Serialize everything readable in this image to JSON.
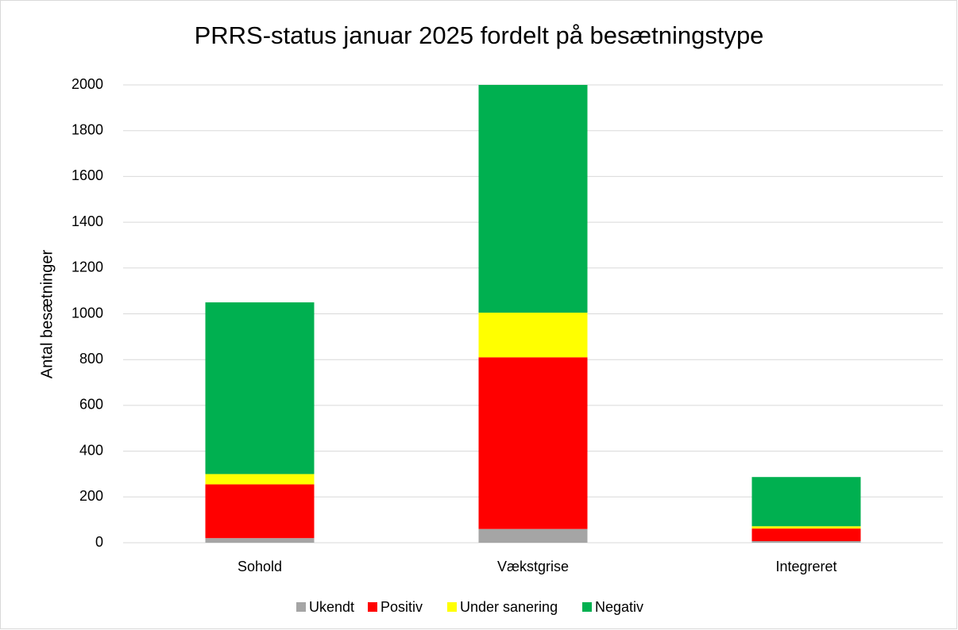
{
  "chart_data": {
    "type": "stacked_bar",
    "title": "PRRS-status januar 2025 fordelt på besætningstype",
    "y_label": "Antal besætninger",
    "categories": [
      "Sohold",
      "Vækstgrise",
      "Integreret"
    ],
    "series": [
      {
        "name": "Ukendt",
        "color": "#a5a5a5",
        "values": [
          20,
          60,
          7
        ]
      },
      {
        "name": "Positiv",
        "color": "#ff0000",
        "values": [
          235,
          750,
          55
        ]
      },
      {
        "name": "Under sanering",
        "color": "#ffff00",
        "values": [
          45,
          195,
          10
        ]
      },
      {
        "name": "Negativ",
        "color": "#00b050",
        "values": [
          750,
          995,
          215
        ]
      }
    ],
    "ylim": [
      0,
      2000
    ],
    "yticks": [
      0,
      200,
      400,
      600,
      800,
      1000,
      1200,
      1400,
      1600,
      1800,
      2000
    ],
    "grid": true,
    "legend": "bottom"
  }
}
